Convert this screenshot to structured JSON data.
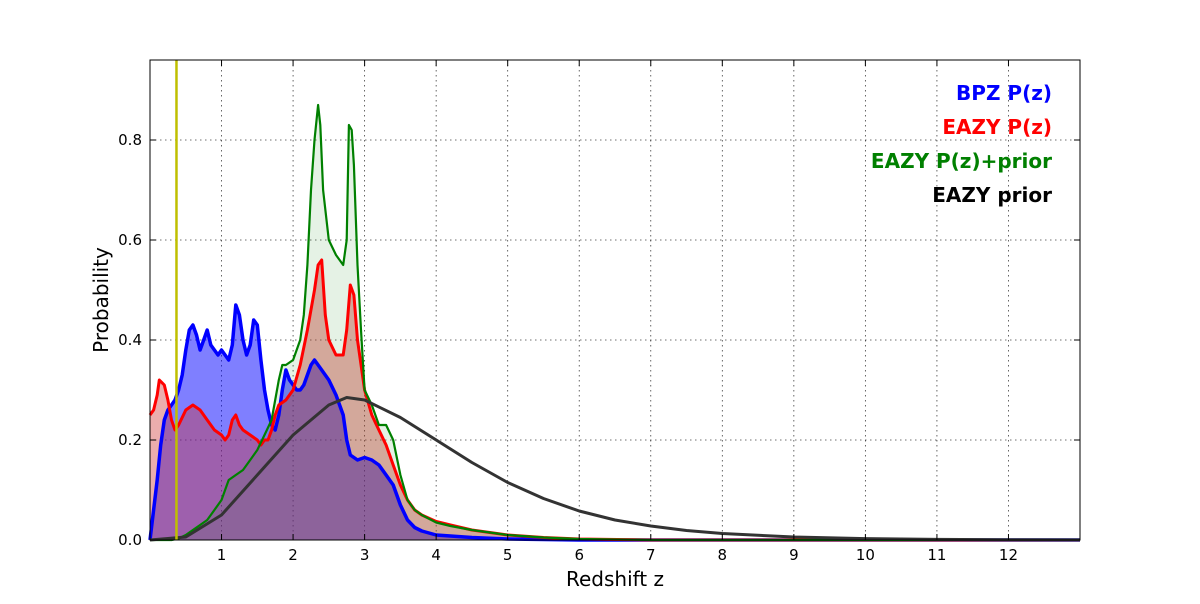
{
  "chart_data": {
    "type": "area",
    "xlabel": "Redshift z",
    "ylabel": "Probability",
    "xlim": [
      0,
      13
    ],
    "ylim": [
      0,
      0.96
    ],
    "grid": true,
    "legend_position": "top-right",
    "x_ticks": [
      1,
      2,
      3,
      4,
      5,
      6,
      7,
      8,
      9,
      10,
      11,
      12
    ],
    "y_ticks": [
      0.0,
      0.2,
      0.4,
      0.6,
      0.8
    ],
    "vline": {
      "x": 0.37,
      "color": "#bfbf00"
    },
    "series": [
      {
        "name": "BPZ P(z)",
        "color": "#0000ff",
        "fill": "#0000ff",
        "fill_opacity": 0.5,
        "points": [
          [
            0,
            0.0
          ],
          [
            0.05,
            0.06
          ],
          [
            0.1,
            0.12
          ],
          [
            0.15,
            0.19
          ],
          [
            0.2,
            0.24
          ],
          [
            0.25,
            0.26
          ],
          [
            0.3,
            0.27
          ],
          [
            0.35,
            0.28
          ],
          [
            0.4,
            0.3
          ],
          [
            0.45,
            0.33
          ],
          [
            0.5,
            0.38
          ],
          [
            0.55,
            0.42
          ],
          [
            0.6,
            0.43
          ],
          [
            0.65,
            0.41
          ],
          [
            0.7,
            0.38
          ],
          [
            0.75,
            0.4
          ],
          [
            0.8,
            0.42
          ],
          [
            0.85,
            0.39
          ],
          [
            0.9,
            0.38
          ],
          [
            0.95,
            0.37
          ],
          [
            1.0,
            0.38
          ],
          [
            1.05,
            0.37
          ],
          [
            1.1,
            0.36
          ],
          [
            1.15,
            0.39
          ],
          [
            1.2,
            0.47
          ],
          [
            1.25,
            0.45
          ],
          [
            1.3,
            0.4
          ],
          [
            1.35,
            0.37
          ],
          [
            1.4,
            0.39
          ],
          [
            1.45,
            0.44
          ],
          [
            1.5,
            0.43
          ],
          [
            1.55,
            0.36
          ],
          [
            1.6,
            0.3
          ],
          [
            1.65,
            0.26
          ],
          [
            1.7,
            0.23
          ],
          [
            1.75,
            0.22
          ],
          [
            1.8,
            0.25
          ],
          [
            1.85,
            0.3
          ],
          [
            1.9,
            0.34
          ],
          [
            1.95,
            0.32
          ],
          [
            2.0,
            0.31
          ],
          [
            2.05,
            0.3
          ],
          [
            2.1,
            0.3
          ],
          [
            2.15,
            0.31
          ],
          [
            2.2,
            0.33
          ],
          [
            2.25,
            0.35
          ],
          [
            2.3,
            0.36
          ],
          [
            2.4,
            0.34
          ],
          [
            2.5,
            0.32
          ],
          [
            2.6,
            0.29
          ],
          [
            2.7,
            0.25
          ],
          [
            2.75,
            0.2
          ],
          [
            2.8,
            0.17
          ],
          [
            2.9,
            0.16
          ],
          [
            3.0,
            0.165
          ],
          [
            3.1,
            0.16
          ],
          [
            3.2,
            0.15
          ],
          [
            3.3,
            0.13
          ],
          [
            3.4,
            0.11
          ],
          [
            3.5,
            0.07
          ],
          [
            3.6,
            0.04
          ],
          [
            3.7,
            0.025
          ],
          [
            3.8,
            0.018
          ],
          [
            4.0,
            0.01
          ],
          [
            4.5,
            0.005
          ],
          [
            5.0,
            0.002
          ],
          [
            6,
            0.0
          ],
          [
            13,
            0.0
          ]
        ]
      },
      {
        "name": "EAZY P(z)",
        "color": "#ff0000",
        "fill": "#cc3333",
        "fill_opacity": 0.4,
        "points": [
          [
            0,
            0.25
          ],
          [
            0.05,
            0.26
          ],
          [
            0.1,
            0.29
          ],
          [
            0.13,
            0.32
          ],
          [
            0.2,
            0.31
          ],
          [
            0.25,
            0.28
          ],
          [
            0.3,
            0.24
          ],
          [
            0.35,
            0.22
          ],
          [
            0.4,
            0.23
          ],
          [
            0.5,
            0.26
          ],
          [
            0.6,
            0.27
          ],
          [
            0.7,
            0.26
          ],
          [
            0.8,
            0.24
          ],
          [
            0.9,
            0.22
          ],
          [
            1.0,
            0.21
          ],
          [
            1.05,
            0.2
          ],
          [
            1.1,
            0.21
          ],
          [
            1.15,
            0.24
          ],
          [
            1.2,
            0.25
          ],
          [
            1.25,
            0.23
          ],
          [
            1.3,
            0.22
          ],
          [
            1.4,
            0.21
          ],
          [
            1.5,
            0.2
          ],
          [
            1.55,
            0.19
          ],
          [
            1.6,
            0.2
          ],
          [
            1.65,
            0.2
          ],
          [
            1.7,
            0.22
          ],
          [
            1.75,
            0.25
          ],
          [
            1.8,
            0.27
          ],
          [
            1.9,
            0.28
          ],
          [
            2.0,
            0.3
          ],
          [
            2.1,
            0.35
          ],
          [
            2.2,
            0.42
          ],
          [
            2.3,
            0.5
          ],
          [
            2.35,
            0.55
          ],
          [
            2.4,
            0.56
          ],
          [
            2.45,
            0.45
          ],
          [
            2.5,
            0.4
          ],
          [
            2.6,
            0.37
          ],
          [
            2.7,
            0.37
          ],
          [
            2.75,
            0.42
          ],
          [
            2.8,
            0.51
          ],
          [
            2.85,
            0.49
          ],
          [
            2.9,
            0.4
          ],
          [
            3.0,
            0.3
          ],
          [
            3.1,
            0.25
          ],
          [
            3.2,
            0.22
          ],
          [
            3.3,
            0.19
          ],
          [
            3.4,
            0.15
          ],
          [
            3.5,
            0.11
          ],
          [
            3.6,
            0.08
          ],
          [
            3.7,
            0.06
          ],
          [
            3.8,
            0.05
          ],
          [
            4.0,
            0.037
          ],
          [
            4.2,
            0.03
          ],
          [
            4.5,
            0.02
          ],
          [
            5.0,
            0.01
          ],
          [
            5.5,
            0.005
          ],
          [
            6,
            0.002
          ],
          [
            7,
            0.0
          ],
          [
            13,
            0.0
          ]
        ]
      },
      {
        "name": "EAZY P(z)+prior",
        "color": "#008000",
        "fill": "#008000",
        "fill_opacity": 0.1,
        "points": [
          [
            0,
            0.0
          ],
          [
            0.3,
            0.0
          ],
          [
            0.4,
            0.003
          ],
          [
            0.5,
            0.01
          ],
          [
            0.6,
            0.02
          ],
          [
            0.7,
            0.03
          ],
          [
            0.8,
            0.04
          ],
          [
            0.9,
            0.06
          ],
          [
            1.0,
            0.08
          ],
          [
            1.05,
            0.1
          ],
          [
            1.1,
            0.12
          ],
          [
            1.2,
            0.13
          ],
          [
            1.3,
            0.14
          ],
          [
            1.4,
            0.16
          ],
          [
            1.5,
            0.18
          ],
          [
            1.6,
            0.21
          ],
          [
            1.7,
            0.24
          ],
          [
            1.75,
            0.28
          ],
          [
            1.8,
            0.32
          ],
          [
            1.85,
            0.35
          ],
          [
            1.9,
            0.35
          ],
          [
            2.0,
            0.36
          ],
          [
            2.1,
            0.4
          ],
          [
            2.15,
            0.45
          ],
          [
            2.2,
            0.55
          ],
          [
            2.25,
            0.7
          ],
          [
            2.3,
            0.8
          ],
          [
            2.35,
            0.87
          ],
          [
            2.38,
            0.83
          ],
          [
            2.42,
            0.7
          ],
          [
            2.5,
            0.6
          ],
          [
            2.6,
            0.57
          ],
          [
            2.7,
            0.55
          ],
          [
            2.75,
            0.6
          ],
          [
            2.78,
            0.83
          ],
          [
            2.82,
            0.82
          ],
          [
            2.85,
            0.75
          ],
          [
            2.9,
            0.55
          ],
          [
            2.95,
            0.42
          ],
          [
            3.0,
            0.3
          ],
          [
            3.1,
            0.27
          ],
          [
            3.2,
            0.23
          ],
          [
            3.3,
            0.23
          ],
          [
            3.4,
            0.2
          ],
          [
            3.5,
            0.13
          ],
          [
            3.6,
            0.08
          ],
          [
            3.7,
            0.06
          ],
          [
            3.8,
            0.05
          ],
          [
            4.0,
            0.035
          ],
          [
            4.2,
            0.028
          ],
          [
            4.5,
            0.02
          ],
          [
            5.0,
            0.01
          ],
          [
            5.5,
            0.005
          ],
          [
            6,
            0.002
          ],
          [
            7,
            0.0
          ],
          [
            13,
            0.0
          ]
        ]
      },
      {
        "name": "EAZY prior",
        "color": "#333333",
        "fill": "none",
        "fill_opacity": 0,
        "points": [
          [
            0,
            0.0
          ],
          [
            0.5,
            0.006
          ],
          [
            1.0,
            0.05
          ],
          [
            1.5,
            0.13
          ],
          [
            2.0,
            0.21
          ],
          [
            2.5,
            0.27
          ],
          [
            2.75,
            0.285
          ],
          [
            3.0,
            0.28
          ],
          [
            3.5,
            0.245
          ],
          [
            4.0,
            0.2
          ],
          [
            4.5,
            0.155
          ],
          [
            5.0,
            0.115
          ],
          [
            5.5,
            0.083
          ],
          [
            6.0,
            0.058
          ],
          [
            6.5,
            0.04
          ],
          [
            7.0,
            0.028
          ],
          [
            7.5,
            0.019
          ],
          [
            8.0,
            0.013
          ],
          [
            9.0,
            0.006
          ],
          [
            10.0,
            0.0028
          ],
          [
            11.0,
            0.0012
          ],
          [
            12.0,
            0.0005
          ],
          [
            13.0,
            0.0002
          ]
        ]
      }
    ]
  }
}
